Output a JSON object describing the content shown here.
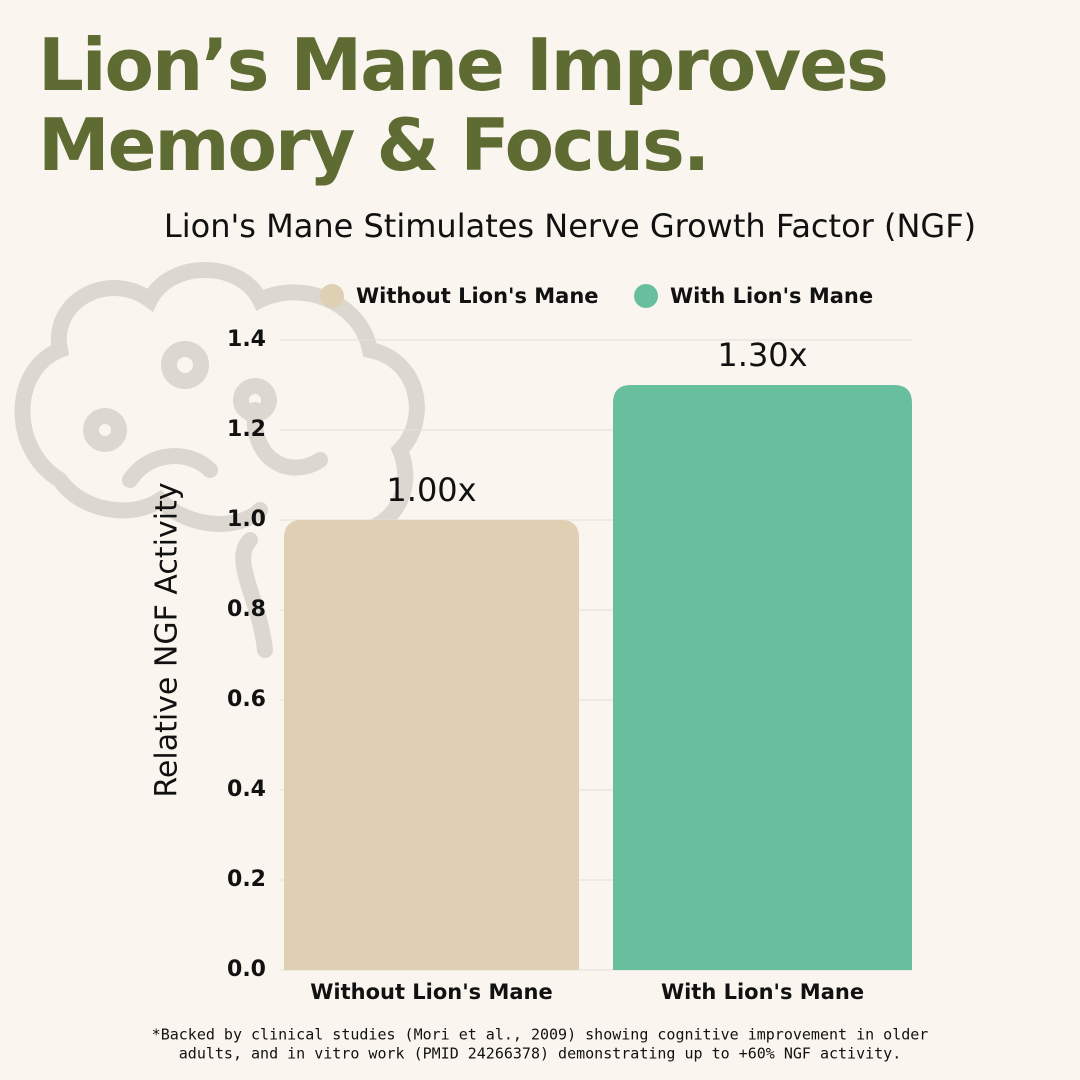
{
  "headline": [
    "Lion’s Mane Improves",
    "Memory & Focus."
  ],
  "chart_data": {
    "type": "bar",
    "title": "Lion's Mane Stimulates Nerve Growth Factor (NGF)",
    "y_label": "Relative NGF Activity",
    "categories": [
      "Without Lion's Mane",
      "With Lion's Mane"
    ],
    "values": [
      1.0,
      1.3
    ],
    "value_labels": [
      "1.00x",
      "1.30x"
    ],
    "colors": [
      "#dfd0b4",
      "#67bf9e"
    ],
    "ylim": [
      0,
      1.4
    ],
    "yticks": [
      {
        "value": 0,
        "label": "0.0"
      },
      0.2,
      0.4,
      0.6,
      0.8,
      {
        "value": 1,
        "label": "1.0"
      },
      1.2,
      1.4
    ],
    "grid": true,
    "legend": "top"
  },
  "footnote": [
    "*Backed by clinical studies (Mori et al., 2009) showing cognitive improvement in older",
    "adults, and in vitro work (PMID 24266378) demonstrating up to +60% NGF activity."
  ]
}
